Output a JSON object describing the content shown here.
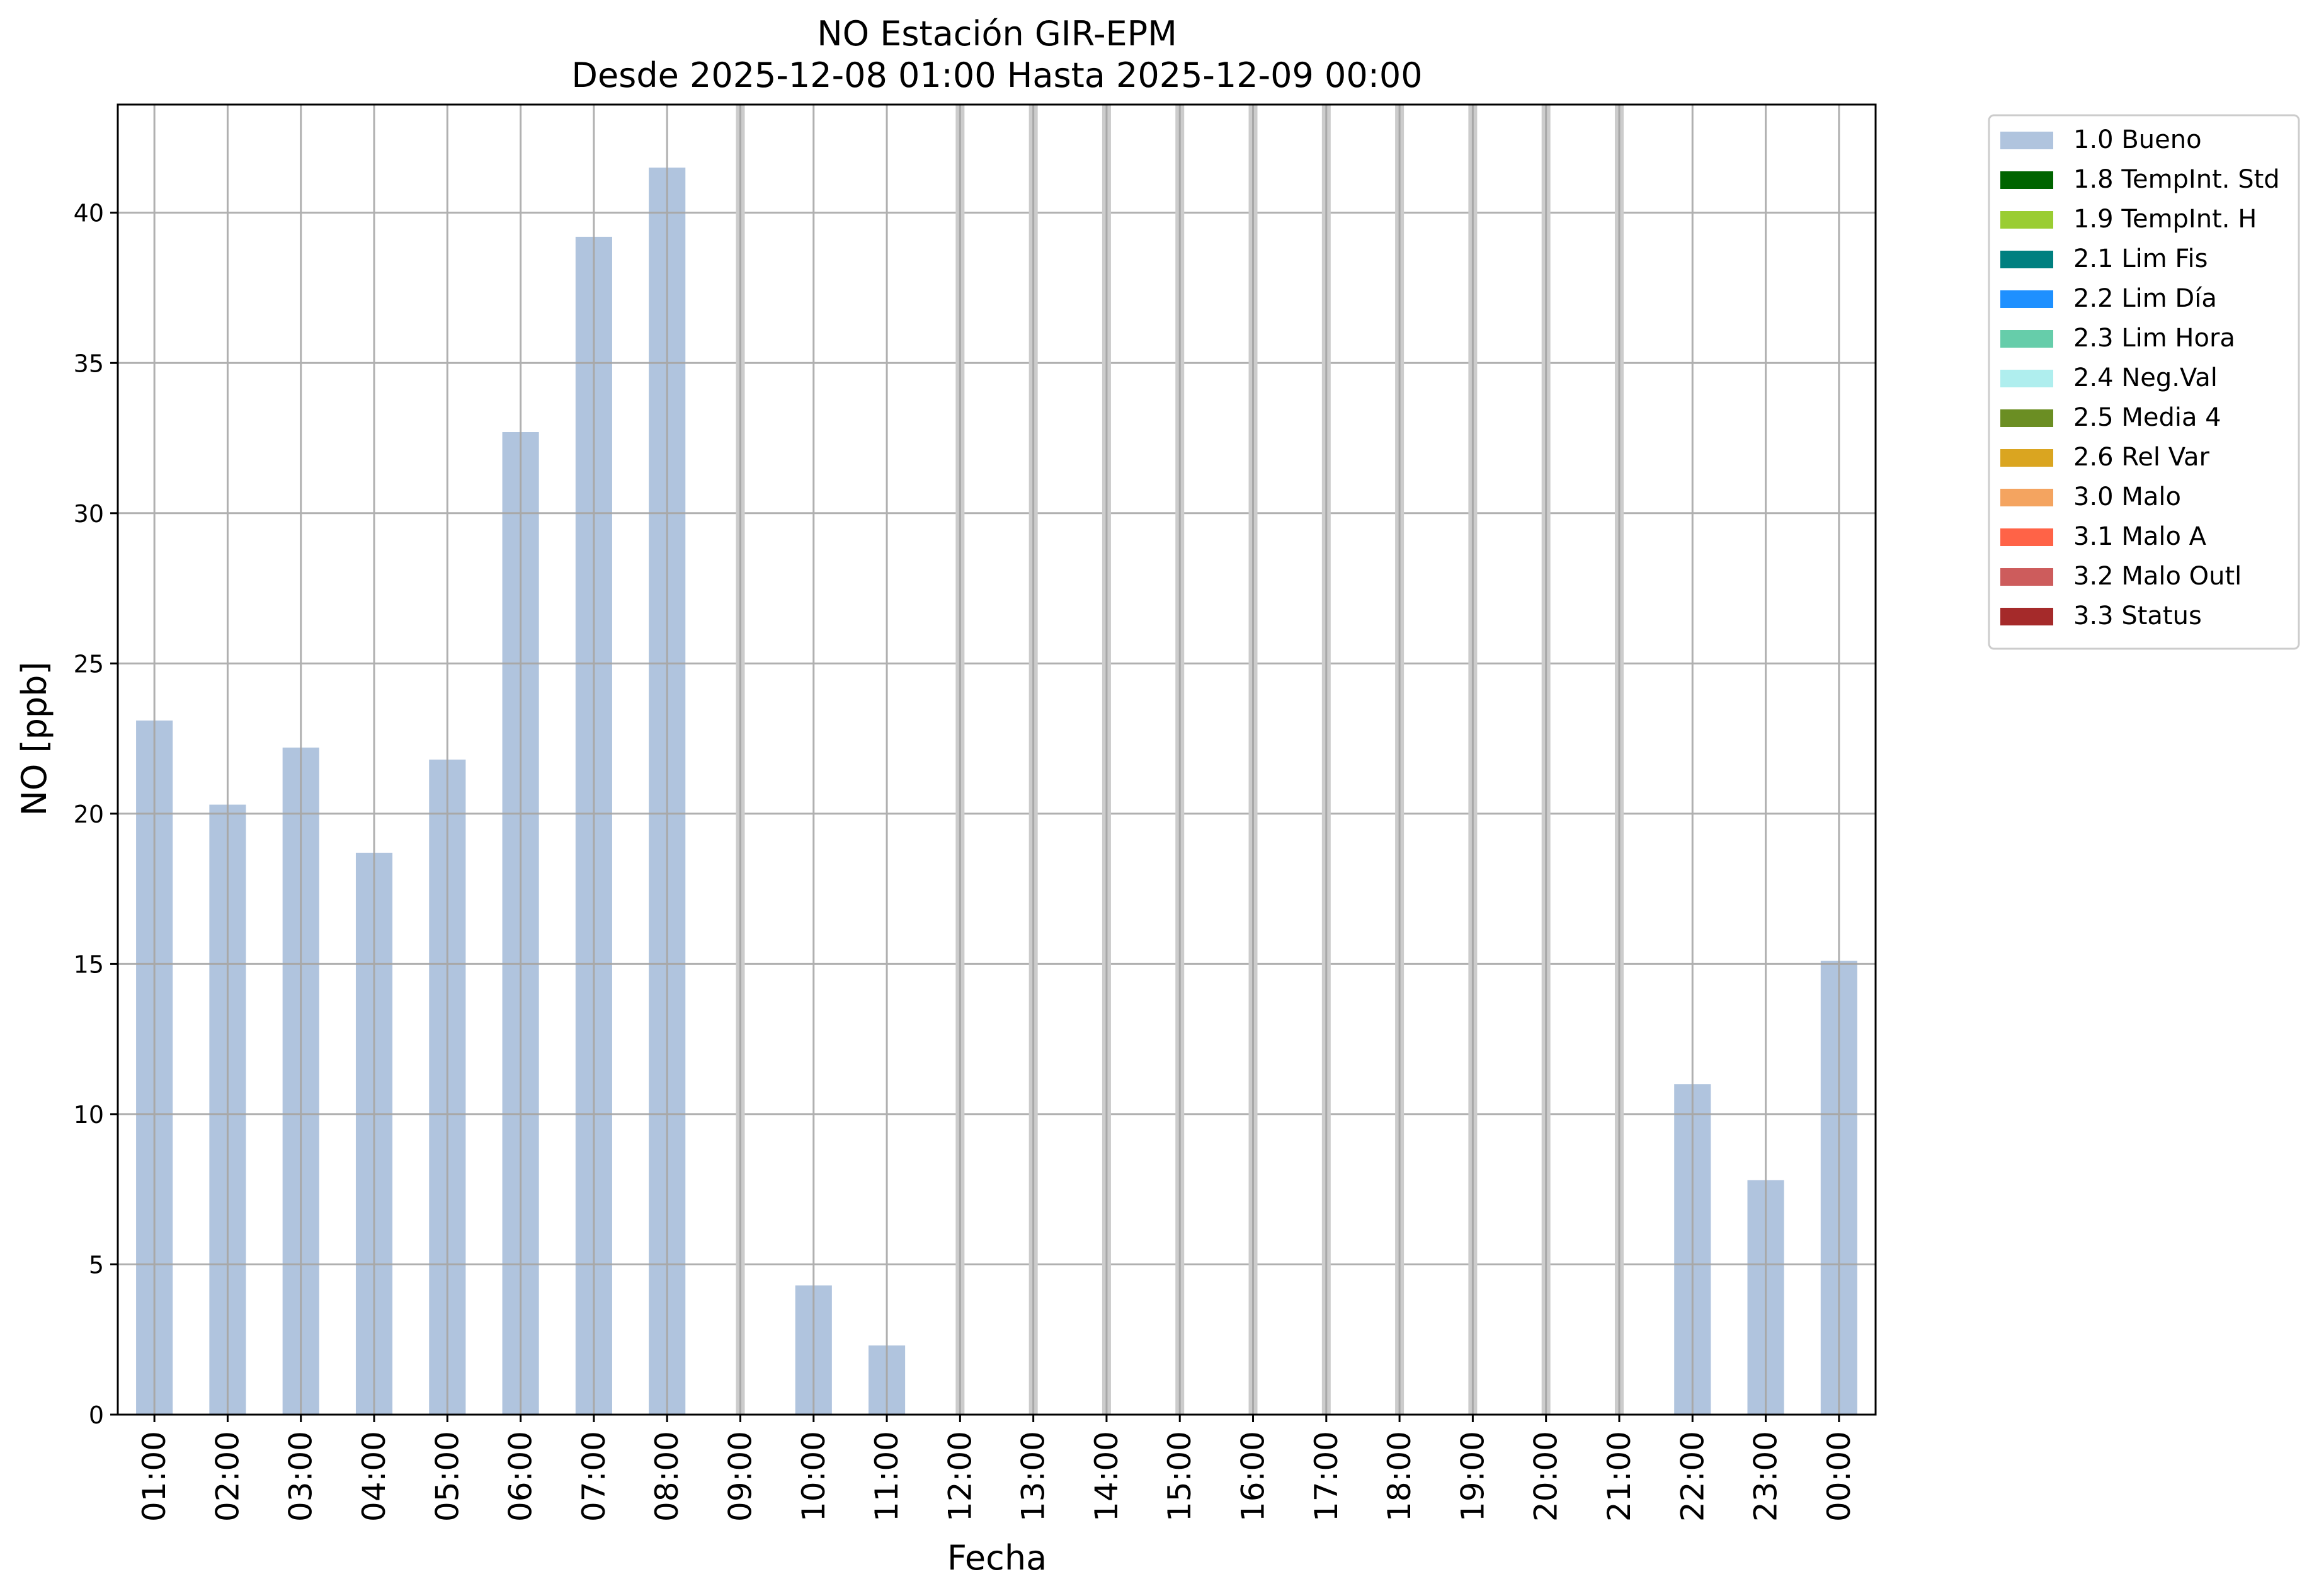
{
  "chart_data": {
    "type": "bar",
    "title": "NO Estación GIR-EPM",
    "subtitle": "Desde 2025-12-08 01:00 Hasta 2025-12-09 00:00",
    "xlabel": "Fecha",
    "ylabel": "NO [ppb]",
    "ylim": [
      0,
      43.6
    ],
    "yticks": [
      0,
      5,
      10,
      15,
      20,
      25,
      30,
      35,
      40
    ],
    "grid": true,
    "legend_position": "outside-right-top",
    "categories": [
      "01:00",
      "02:00",
      "03:00",
      "04:00",
      "05:00",
      "06:00",
      "07:00",
      "08:00",
      "09:00",
      "10:00",
      "11:00",
      "12:00",
      "13:00",
      "14:00",
      "15:00",
      "16:00",
      "17:00",
      "18:00",
      "19:00",
      "20:00",
      "21:00",
      "22:00",
      "23:00",
      "00:00"
    ],
    "series": [
      {
        "name": "1.0 Bueno",
        "color": "#b0c4de",
        "values": [
          23.1,
          20.3,
          22.2,
          18.7,
          21.8,
          32.7,
          39.2,
          41.5,
          null,
          4.3,
          2.3,
          null,
          null,
          null,
          null,
          null,
          null,
          null,
          null,
          null,
          null,
          11.0,
          7.8,
          15.1
        ]
      }
    ],
    "missing_hour_color": "#cccccc",
    "legend": [
      {
        "label": "1.0 Bueno",
        "color": "#b0c4de"
      },
      {
        "label": "1.8 TempInt. Std",
        "color": "#006400"
      },
      {
        "label": "1.9 TempInt. H",
        "color": "#9acd32"
      },
      {
        "label": "2.1 Lim Fis",
        "color": "#008080"
      },
      {
        "label": "2.2 Lim Día",
        "color": "#1e90ff"
      },
      {
        "label": "2.3 Lim Hora",
        "color": "#66cdaa"
      },
      {
        "label": "2.4 Neg.Val",
        "color": "#afeeee"
      },
      {
        "label": "2.5 Media 4",
        "color": "#6b8e23"
      },
      {
        "label": "2.6 Rel Var",
        "color": "#daa520"
      },
      {
        "label": "3.0 Malo",
        "color": "#f4a460"
      },
      {
        "label": "3.1 Malo A",
        "color": "#ff6347"
      },
      {
        "label": "3.2 Malo Outl",
        "color": "#cd5c5c"
      },
      {
        "label": "3.3 Status",
        "color": "#a52a2a"
      }
    ]
  }
}
